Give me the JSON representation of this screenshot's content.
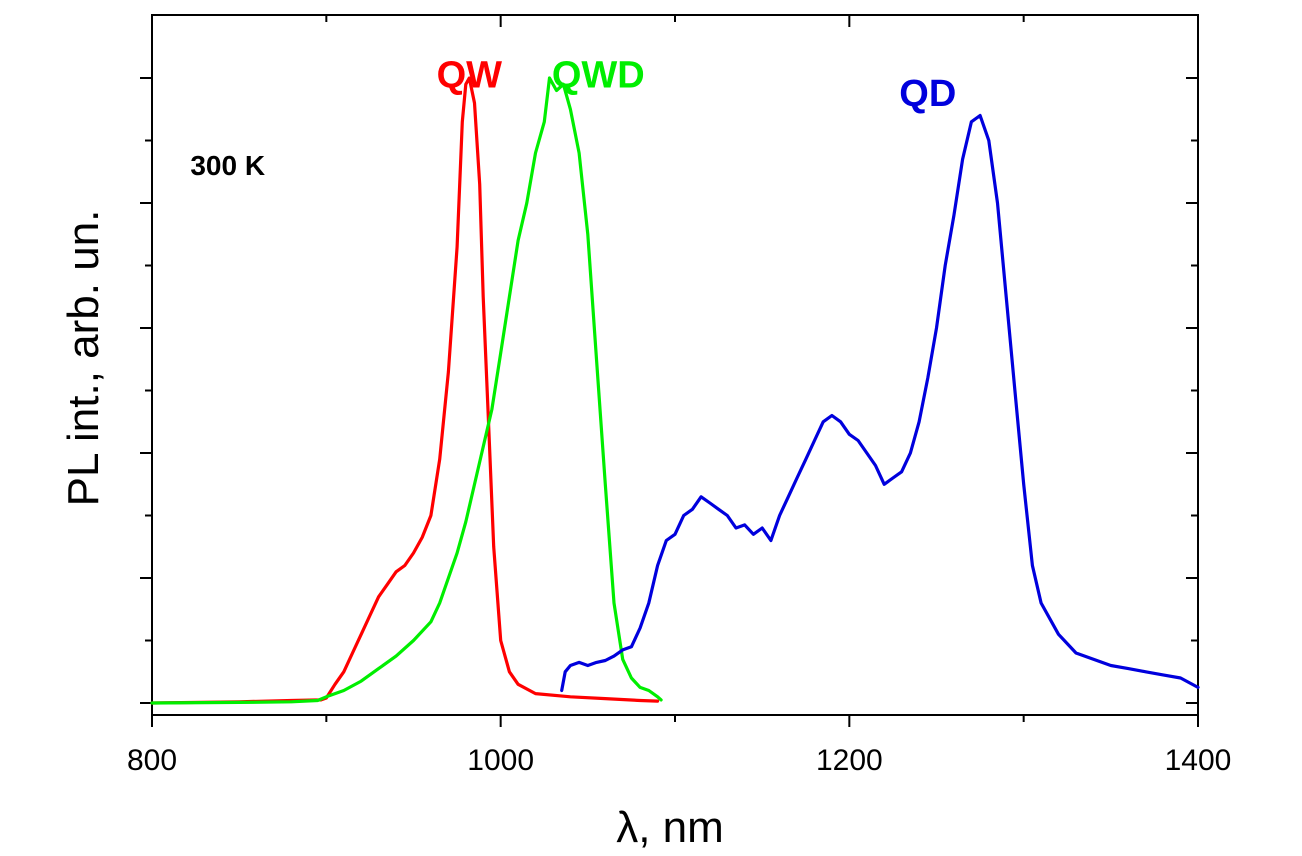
{
  "chart_data": {
    "type": "line",
    "title": "",
    "xlabel": "λ, nm",
    "ylabel": "PL int., arb. un.",
    "xlim": [
      800,
      1400
    ],
    "ylim": [
      0,
      1.0
    ],
    "x_major_ticks": [
      800,
      1000,
      1200,
      1400
    ],
    "x_tick_labels": [
      "800",
      "1000",
      "1200",
      "1400"
    ],
    "y_tick_labels_shown": false,
    "grid": false,
    "legend": "none",
    "series": [
      {
        "name": "QW",
        "color": "#ff0000",
        "points": [
          [
            800,
            0.0
          ],
          [
            850,
            0.002
          ],
          [
            880,
            0.004
          ],
          [
            897,
            0.005
          ],
          [
            900,
            0.008
          ],
          [
            905,
            0.03
          ],
          [
            910,
            0.05
          ],
          [
            915,
            0.08
          ],
          [
            920,
            0.11
          ],
          [
            925,
            0.14
          ],
          [
            930,
            0.17
          ],
          [
            935,
            0.19
          ],
          [
            940,
            0.21
          ],
          [
            945,
            0.22
          ],
          [
            950,
            0.24
          ],
          [
            955,
            0.265
          ],
          [
            960,
            0.3
          ],
          [
            965,
            0.39
          ],
          [
            970,
            0.53
          ],
          [
            975,
            0.73
          ],
          [
            978,
            0.93
          ],
          [
            980,
            0.99
          ],
          [
            982,
            1.0
          ],
          [
            985,
            0.96
          ],
          [
            988,
            0.83
          ],
          [
            990,
            0.65
          ],
          [
            993,
            0.45
          ],
          [
            996,
            0.25
          ],
          [
            1000,
            0.1
          ],
          [
            1005,
            0.05
          ],
          [
            1010,
            0.03
          ],
          [
            1020,
            0.015
          ],
          [
            1040,
            0.01
          ],
          [
            1060,
            0.007
          ],
          [
            1080,
            0.004
          ],
          [
            1090,
            0.003
          ]
        ]
      },
      {
        "name": "QWD",
        "color": "#00ee00",
        "points": [
          [
            800,
            0.0
          ],
          [
            850,
            0.001
          ],
          [
            880,
            0.002
          ],
          [
            895,
            0.004
          ],
          [
            900,
            0.01
          ],
          [
            910,
            0.02
          ],
          [
            920,
            0.035
          ],
          [
            930,
            0.055
          ],
          [
            940,
            0.075
          ],
          [
            950,
            0.1
          ],
          [
            960,
            0.13
          ],
          [
            965,
            0.16
          ],
          [
            970,
            0.2
          ],
          [
            975,
            0.24
          ],
          [
            980,
            0.29
          ],
          [
            985,
            0.35
          ],
          [
            990,
            0.41
          ],
          [
            995,
            0.47
          ],
          [
            1000,
            0.56
          ],
          [
            1005,
            0.65
          ],
          [
            1010,
            0.74
          ],
          [
            1015,
            0.8
          ],
          [
            1020,
            0.88
          ],
          [
            1025,
            0.93
          ],
          [
            1028,
            1.0
          ],
          [
            1032,
            0.98
          ],
          [
            1036,
            0.99
          ],
          [
            1040,
            0.95
          ],
          [
            1045,
            0.88
          ],
          [
            1050,
            0.75
          ],
          [
            1055,
            0.55
          ],
          [
            1060,
            0.35
          ],
          [
            1065,
            0.16
          ],
          [
            1070,
            0.07
          ],
          [
            1075,
            0.04
          ],
          [
            1080,
            0.025
          ],
          [
            1085,
            0.02
          ],
          [
            1090,
            0.01
          ],
          [
            1092,
            0.005
          ]
        ]
      },
      {
        "name": "QD",
        "color": "#0000dd",
        "points": [
          [
            1035,
            0.02
          ],
          [
            1037,
            0.05
          ],
          [
            1040,
            0.06
          ],
          [
            1045,
            0.065
          ],
          [
            1050,
            0.06
          ],
          [
            1055,
            0.065
          ],
          [
            1060,
            0.068
          ],
          [
            1065,
            0.075
          ],
          [
            1070,
            0.085
          ],
          [
            1075,
            0.09
          ],
          [
            1080,
            0.12
          ],
          [
            1085,
            0.16
          ],
          [
            1090,
            0.22
          ],
          [
            1095,
            0.26
          ],
          [
            1100,
            0.27
          ],
          [
            1105,
            0.3
          ],
          [
            1110,
            0.31
          ],
          [
            1115,
            0.33
          ],
          [
            1120,
            0.32
          ],
          [
            1125,
            0.31
          ],
          [
            1130,
            0.3
          ],
          [
            1135,
            0.28
          ],
          [
            1140,
            0.285
          ],
          [
            1145,
            0.27
          ],
          [
            1150,
            0.28
          ],
          [
            1155,
            0.26
          ],
          [
            1160,
            0.3
          ],
          [
            1165,
            0.33
          ],
          [
            1170,
            0.36
          ],
          [
            1175,
            0.39
          ],
          [
            1180,
            0.42
          ],
          [
            1185,
            0.45
          ],
          [
            1190,
            0.46
          ],
          [
            1195,
            0.45
          ],
          [
            1200,
            0.43
          ],
          [
            1205,
            0.42
          ],
          [
            1210,
            0.4
          ],
          [
            1215,
            0.38
          ],
          [
            1220,
            0.35
          ],
          [
            1225,
            0.36
          ],
          [
            1230,
            0.37
          ],
          [
            1235,
            0.4
          ],
          [
            1240,
            0.45
          ],
          [
            1245,
            0.52
          ],
          [
            1250,
            0.6
          ],
          [
            1255,
            0.7
          ],
          [
            1260,
            0.78
          ],
          [
            1265,
            0.87
          ],
          [
            1270,
            0.93
          ],
          [
            1275,
            0.94
          ],
          [
            1280,
            0.9
          ],
          [
            1285,
            0.8
          ],
          [
            1290,
            0.65
          ],
          [
            1295,
            0.5
          ],
          [
            1300,
            0.35
          ],
          [
            1305,
            0.22
          ],
          [
            1310,
            0.16
          ],
          [
            1320,
            0.11
          ],
          [
            1330,
            0.08
          ],
          [
            1340,
            0.07
          ],
          [
            1350,
            0.06
          ],
          [
            1360,
            0.055
          ],
          [
            1370,
            0.05
          ],
          [
            1380,
            0.045
          ],
          [
            1390,
            0.04
          ],
          [
            1400,
            0.025
          ]
        ]
      }
    ],
    "annotations": [
      {
        "text": "QW",
        "x": 982,
        "y": 0.985,
        "color": "#ff0000"
      },
      {
        "text": "QWD",
        "x": 1056,
        "y": 0.985,
        "color": "#00ee00"
      },
      {
        "text": "QD",
        "x": 1245,
        "y": 0.955,
        "color": "#0000dd"
      },
      {
        "text": "300 K",
        "x": 822,
        "y": 0.845,
        "color": "#000000"
      }
    ]
  }
}
